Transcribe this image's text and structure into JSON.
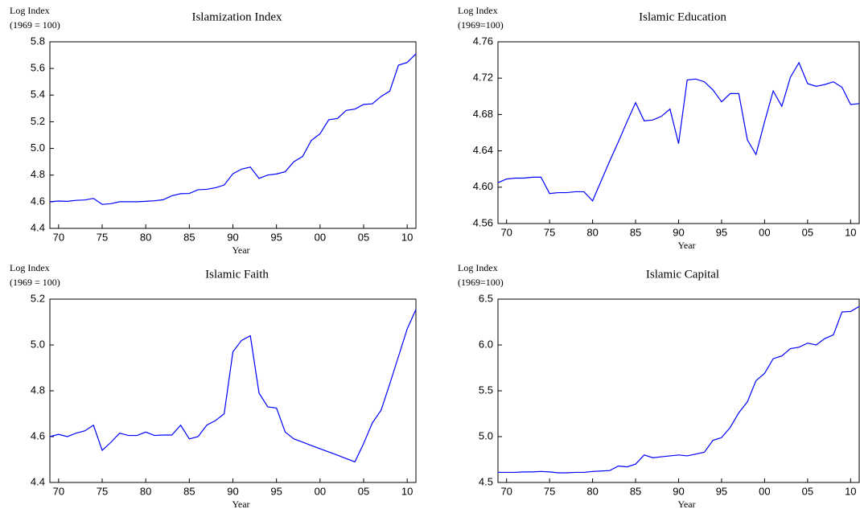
{
  "chart_data": [
    {
      "type": "line",
      "title": "Islamization Index",
      "ylabel": [
        "Log Index",
        "(1969 = 100)"
      ],
      "xlabel": "Year",
      "color": "#0000ff",
      "x": [
        1969,
        1970,
        1971,
        1972,
        1973,
        1974,
        1975,
        1976,
        1977,
        1978,
        1979,
        1980,
        1981,
        1982,
        1983,
        1984,
        1985,
        1986,
        1987,
        1988,
        1989,
        1990,
        1991,
        1992,
        1993,
        1994,
        1995,
        1996,
        1997,
        1998,
        1999,
        2000,
        2001,
        2002,
        2003,
        2004,
        2005,
        2006,
        2007,
        2008,
        2009,
        2010,
        2011
      ],
      "values": [
        4.6,
        4.605,
        4.603,
        4.61,
        4.613,
        4.625,
        4.58,
        4.585,
        4.6,
        4.6,
        4.6,
        4.603,
        4.607,
        4.615,
        4.645,
        4.66,
        4.662,
        4.69,
        4.693,
        4.705,
        4.725,
        4.81,
        4.845,
        4.86,
        4.775,
        4.8,
        4.808,
        4.825,
        4.9,
        4.94,
        5.06,
        5.11,
        5.215,
        5.225,
        5.285,
        5.295,
        5.33,
        5.335,
        5.39,
        5.43,
        5.625,
        5.645,
        5.71
      ],
      "xlim": [
        1969,
        2011
      ],
      "ylim": [
        4.4,
        5.8
      ],
      "xticks": [
        {
          "value": 1970,
          "label": "70"
        },
        {
          "value": 1975,
          "label": "75"
        },
        {
          "value": 1980,
          "label": "80"
        },
        {
          "value": 1985,
          "label": "85"
        },
        {
          "value": 1990,
          "label": "90"
        },
        {
          "value": 1995,
          "label": "95"
        },
        {
          "value": 2000,
          "label": "00"
        },
        {
          "value": 2005,
          "label": "05"
        },
        {
          "value": 2010,
          "label": "10"
        }
      ],
      "yticks": [
        4.4,
        4.6,
        4.8,
        {
          "value": 5,
          "label": "5.0"
        },
        5.2,
        5.4,
        5.6,
        5.8
      ]
    },
    {
      "type": "line",
      "title": "Islamic Education",
      "ylabel": [
        "Log Index",
        "(1969=100)"
      ],
      "xlabel": "Year",
      "color": "#0000ff",
      "x": [
        1969,
        1970,
        1971,
        1972,
        1973,
        1974,
        1975,
        1976,
        1977,
        1978,
        1979,
        1980,
        1981,
        1982,
        1983,
        1984,
        1985,
        1986,
        1987,
        1988,
        1989,
        1990,
        1991,
        1992,
        1993,
        1994,
        1995,
        1996,
        1997,
        1998,
        1999,
        2000,
        2001,
        2002,
        2003,
        2004,
        2005,
        2006,
        2007,
        2008,
        2009,
        2010,
        2011
      ],
      "values": [
        4.605,
        4.609,
        4.61,
        4.61,
        4.611,
        4.611,
        4.593,
        4.594,
        4.594,
        4.595,
        4.595,
        4.585,
        4.607,
        4.629,
        4.65,
        4.672,
        4.693,
        4.673,
        4.674,
        4.678,
        4.686,
        4.648,
        4.718,
        4.719,
        4.716,
        4.707,
        4.694,
        4.703,
        4.703,
        4.652,
        4.636,
        4.672,
        4.706,
        4.689,
        4.721,
        4.737,
        4.714,
        4.711,
        4.713,
        4.716,
        4.71,
        4.691,
        4.692
      ],
      "xlim": [
        1969,
        2011
      ],
      "ylim": [
        4.56,
        4.76
      ],
      "xticks": [
        {
          "value": 1970,
          "label": "70"
        },
        {
          "value": 1975,
          "label": "75"
        },
        {
          "value": 1980,
          "label": "80"
        },
        {
          "value": 1985,
          "label": "85"
        },
        {
          "value": 1990,
          "label": "90"
        },
        {
          "value": 1995,
          "label": "95"
        },
        {
          "value": 2000,
          "label": "00"
        },
        {
          "value": 2005,
          "label": "05"
        },
        {
          "value": 2010,
          "label": "10"
        }
      ],
      "yticks": [
        4.56,
        {
          "value": 4.6,
          "label": "4.60"
        },
        4.64,
        4.68,
        4.72,
        4.76
      ]
    },
    {
      "type": "line",
      "title": "Islamic Faith",
      "ylabel": [
        "Log Index",
        "(1969 = 100)"
      ],
      "xlabel": "Year",
      "color": "#0000ff",
      "x": [
        1969,
        1970,
        1971,
        1972,
        1973,
        1974,
        1975,
        1976,
        1977,
        1978,
        1979,
        1980,
        1981,
        1982,
        1983,
        1984,
        1985,
        1986,
        1987,
        1988,
        1989,
        1990,
        1991,
        1992,
        1993,
        1994,
        1995,
        1996,
        1997,
        1998,
        1999,
        2000,
        2001,
        2002,
        2003,
        2004,
        2005,
        2006,
        2007,
        2008,
        2009,
        2010,
        2011
      ],
      "values": [
        4.6,
        4.61,
        4.6,
        4.615,
        4.625,
        4.65,
        4.54,
        4.575,
        4.615,
        4.605,
        4.605,
        4.62,
        4.605,
        4.607,
        4.607,
        4.65,
        4.59,
        4.6,
        4.65,
        4.67,
        4.7,
        4.97,
        5.02,
        5.04,
        4.79,
        4.73,
        4.725,
        4.62,
        4.59,
        4.576,
        4.561,
        4.547,
        4.533,
        4.519,
        4.504,
        4.49,
        4.57,
        4.66,
        4.715,
        4.83,
        4.95,
        5.07,
        5.155
      ],
      "xlim": [
        1969,
        2011
      ],
      "ylim": [
        4.4,
        5.2
      ],
      "xticks": [
        {
          "value": 1970,
          "label": "70"
        },
        {
          "value": 1975,
          "label": "75"
        },
        {
          "value": 1980,
          "label": "80"
        },
        {
          "value": 1985,
          "label": "85"
        },
        {
          "value": 1990,
          "label": "90"
        },
        {
          "value": 1995,
          "label": "95"
        },
        {
          "value": 2000,
          "label": "00"
        },
        {
          "value": 2005,
          "label": "05"
        },
        {
          "value": 2010,
          "label": "10"
        }
      ],
      "yticks": [
        4.4,
        4.6,
        4.8,
        {
          "value": 5,
          "label": "5.0"
        },
        5.2
      ]
    },
    {
      "type": "line",
      "title": "Islamic Capital",
      "ylabel": [
        "Log Index",
        "(1969=100)"
      ],
      "xlabel": "Year",
      "color": "#0000ff",
      "x": [
        1969,
        1970,
        1971,
        1972,
        1973,
        1974,
        1975,
        1976,
        1977,
        1978,
        1979,
        1980,
        1981,
        1982,
        1983,
        1984,
        1985,
        1986,
        1987,
        1988,
        1989,
        1990,
        1991,
        1992,
        1993,
        1994,
        1995,
        1996,
        1997,
        1998,
        1999,
        2000,
        2001,
        2002,
        2003,
        2004,
        2005,
        2006,
        2007,
        2008,
        2009,
        2010,
        2011
      ],
      "values": [
        4.61,
        4.61,
        4.61,
        4.615,
        4.615,
        4.62,
        4.615,
        4.605,
        4.605,
        4.61,
        4.61,
        4.62,
        4.625,
        4.63,
        4.68,
        4.67,
        4.7,
        4.8,
        4.77,
        4.78,
        4.79,
        4.8,
        4.79,
        4.81,
        4.83,
        4.96,
        4.99,
        5.1,
        5.26,
        5.38,
        5.61,
        5.69,
        5.85,
        5.88,
        5.96,
        5.975,
        6.02,
        6,
        6.07,
        6.11,
        6.36,
        6.365,
        6.42
      ],
      "xlim": [
        1969,
        2011
      ],
      "ylim": [
        4.5,
        6.5
      ],
      "xticks": [
        {
          "value": 1970,
          "label": "70"
        },
        {
          "value": 1975,
          "label": "75"
        },
        {
          "value": 1980,
          "label": "80"
        },
        {
          "value": 1985,
          "label": "85"
        },
        {
          "value": 1990,
          "label": "90"
        },
        {
          "value": 1995,
          "label": "95"
        },
        {
          "value": 2000,
          "label": "00"
        },
        {
          "value": 2005,
          "label": "05"
        },
        {
          "value": 2010,
          "label": "10"
        }
      ],
      "yticks": [
        4.5,
        {
          "value": 5,
          "label": "5.0"
        },
        5.5,
        {
          "value": 6,
          "label": "6.0"
        },
        6.5
      ]
    }
  ]
}
